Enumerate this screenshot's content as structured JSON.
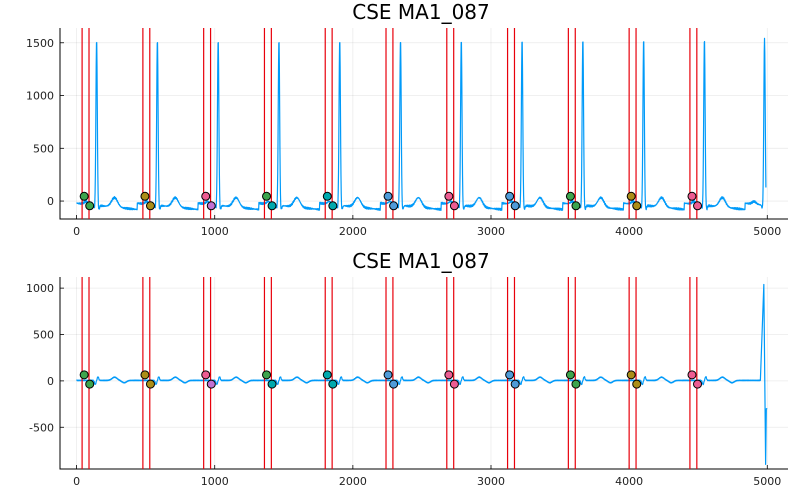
{
  "colors": {
    "signal": "#009af9",
    "marker_line": "#e8000b",
    "point_cycle": [
      "#3da44d",
      "#c271d2",
      "#ac8e18",
      "#00a9ad",
      "#ed5d92",
      "#4f9bd8"
    ]
  },
  "chart_data": [
    {
      "type": "line",
      "title": "CSE MA1_087",
      "xlim": [
        -120,
        5150
      ],
      "ylim": [
        -170,
        1640
      ],
      "xticks": [
        0,
        1000,
        2000,
        3000,
        4000,
        5000
      ],
      "yticks": [
        0,
        500,
        1000,
        1500
      ],
      "grid": true,
      "legend": "none",
      "vertical_markers": [
        40,
        90,
        480,
        530,
        920,
        970,
        1360,
        1410,
        1800,
        1850,
        2240,
        2290,
        2680,
        2730,
        3120,
        3170,
        3560,
        3610,
        4000,
        4050,
        4440,
        4490
      ],
      "r_peaks": [
        145,
        585,
        1025,
        1465,
        1905,
        2345,
        2785,
        3225,
        3665,
        4105,
        4545,
        4980
      ],
      "r_amplitude": 1580,
      "baseline": -20,
      "baseline_drift": -60,
      "t_wave_amplitude": 90,
      "end_x": 4990,
      "points": [
        {
          "x": 55,
          "y": 45,
          "color": "#3da44d"
        },
        {
          "x": 95,
          "y": -45,
          "color": "#3da44d"
        },
        {
          "x": 495,
          "y": 45,
          "color": "#ac8e18"
        },
        {
          "x": 535,
          "y": -45,
          "color": "#ac8e18"
        },
        {
          "x": 935,
          "y": 45,
          "color": "#ed5d92"
        },
        {
          "x": 975,
          "y": -45,
          "color": "#c271d2"
        },
        {
          "x": 1375,
          "y": 45,
          "color": "#3da44d"
        },
        {
          "x": 1415,
          "y": -45,
          "color": "#00a9ad"
        },
        {
          "x": 1815,
          "y": 45,
          "color": "#00a9ad"
        },
        {
          "x": 1855,
          "y": -45,
          "color": "#00a9ad"
        },
        {
          "x": 2255,
          "y": 45,
          "color": "#4f9bd8"
        },
        {
          "x": 2295,
          "y": -45,
          "color": "#4f9bd8"
        },
        {
          "x": 2695,
          "y": 45,
          "color": "#ed5d92"
        },
        {
          "x": 2735,
          "y": -45,
          "color": "#ed5d92"
        },
        {
          "x": 3135,
          "y": 45,
          "color": "#4f9bd8"
        },
        {
          "x": 3175,
          "y": -45,
          "color": "#4f9bd8"
        },
        {
          "x": 3575,
          "y": 45,
          "color": "#3da44d"
        },
        {
          "x": 3615,
          "y": -45,
          "color": "#3da44d"
        },
        {
          "x": 4015,
          "y": 45,
          "color": "#ac8e18"
        },
        {
          "x": 4055,
          "y": -45,
          "color": "#ac8e18"
        },
        {
          "x": 4455,
          "y": 45,
          "color": "#ed5d92"
        },
        {
          "x": 4495,
          "y": -45,
          "color": "#ed5d92"
        }
      ]
    },
    {
      "type": "line",
      "title": "CSE MA1_087",
      "xlim": [
        -120,
        5150
      ],
      "ylim": [
        -950,
        1120
      ],
      "xticks": [
        0,
        1000,
        2000,
        3000,
        4000,
        5000
      ],
      "yticks": [
        -500,
        0,
        500,
        1000
      ],
      "grid": true,
      "legend": "none",
      "vertical_markers": [
        40,
        90,
        480,
        530,
        920,
        970,
        1360,
        1410,
        1800,
        1850,
        2240,
        2290,
        2680,
        2730,
        3120,
        3170,
        3560,
        3610,
        4000,
        4050,
        4440,
        4490
      ],
      "wave_centers": [
        145,
        585,
        1025,
        1465,
        1905,
        2345,
        2785,
        3225,
        3665,
        4105,
        4545
      ],
      "baseline": 5,
      "end_spike": {
        "x": [
          4950,
          4975,
          4988,
          4993,
          5000
        ],
        "y": [
          5,
          1040,
          -900,
          -300,
          -300
        ]
      },
      "points": [
        {
          "x": 55,
          "y": 65,
          "color": "#3da44d"
        },
        {
          "x": 95,
          "y": -35,
          "color": "#3da44d"
        },
        {
          "x": 495,
          "y": 65,
          "color": "#ac8e18"
        },
        {
          "x": 535,
          "y": -35,
          "color": "#ac8e18"
        },
        {
          "x": 935,
          "y": 65,
          "color": "#ed5d92"
        },
        {
          "x": 975,
          "y": -35,
          "color": "#c271d2"
        },
        {
          "x": 1375,
          "y": 65,
          "color": "#3da44d"
        },
        {
          "x": 1415,
          "y": -35,
          "color": "#00a9ad"
        },
        {
          "x": 1815,
          "y": 65,
          "color": "#00a9ad"
        },
        {
          "x": 1855,
          "y": -35,
          "color": "#00a9ad"
        },
        {
          "x": 2255,
          "y": 65,
          "color": "#4f9bd8"
        },
        {
          "x": 2295,
          "y": -35,
          "color": "#4f9bd8"
        },
        {
          "x": 2695,
          "y": 65,
          "color": "#ed5d92"
        },
        {
          "x": 2735,
          "y": -35,
          "color": "#ed5d92"
        },
        {
          "x": 3135,
          "y": 65,
          "color": "#4f9bd8"
        },
        {
          "x": 3175,
          "y": -35,
          "color": "#4f9bd8"
        },
        {
          "x": 3575,
          "y": 65,
          "color": "#3da44d"
        },
        {
          "x": 3615,
          "y": -35,
          "color": "#3da44d"
        },
        {
          "x": 4015,
          "y": 65,
          "color": "#ac8e18"
        },
        {
          "x": 4055,
          "y": -35,
          "color": "#ac8e18"
        },
        {
          "x": 4455,
          "y": 65,
          "color": "#ed5d92"
        },
        {
          "x": 4495,
          "y": -35,
          "color": "#ed5d92"
        }
      ]
    }
  ]
}
